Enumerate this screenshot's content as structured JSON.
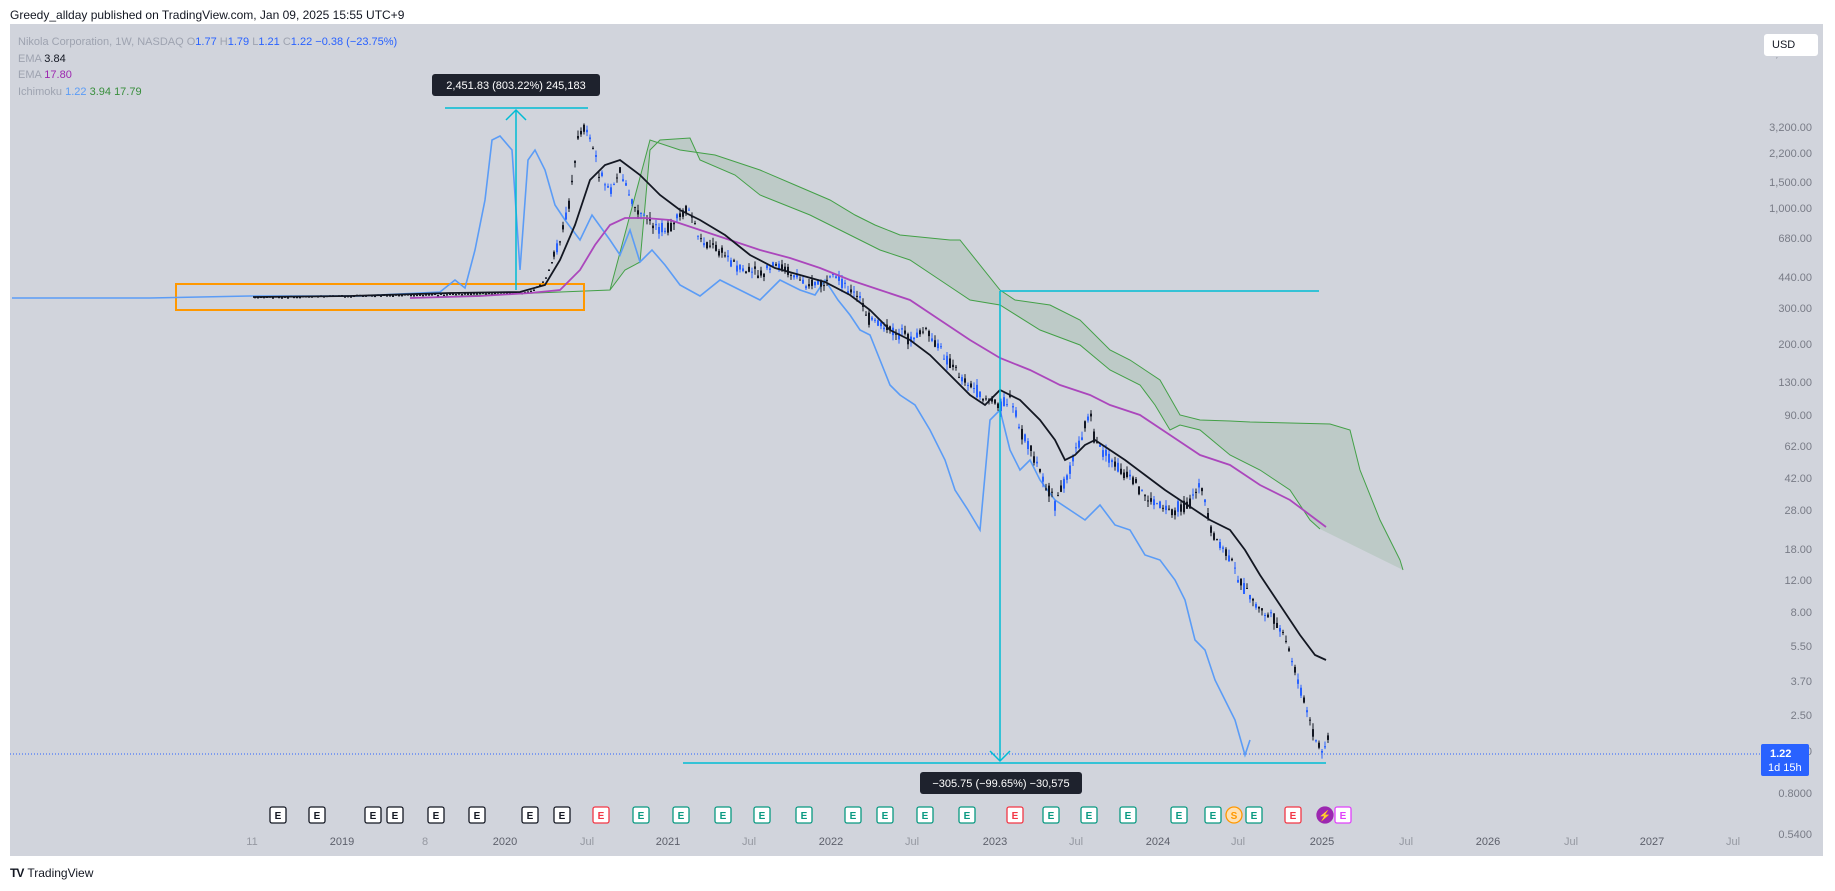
{
  "header": {
    "publisher": "Greedy_allday published on TradingView.com, Jan 09, 2025 15:55 UTC+9"
  },
  "legend": {
    "symbol": "Nikola Corporation, 1W, NASDAQ",
    "o_label": "O",
    "o_val": "1.77",
    "h_label": "H",
    "h_val": "1.79",
    "l_label": "L",
    "l_val": "1.21",
    "c_label": "C",
    "c_val": "1.22",
    "change": "−0.38 (−23.75%)",
    "ema1_label": "EMA",
    "ema1_val": "3.84",
    "ema2_label": "EMA",
    "ema2_val": "17.80",
    "ichi_label": "Ichimoku",
    "ichi_v1": "1.22",
    "ichi_v2": "3.94",
    "ichi_v3": "17.79"
  },
  "currency_button": "USD",
  "footer": {
    "logo_mark": "TV",
    "brand": "TradingView"
  },
  "colors": {
    "candle": "#2962ff",
    "ema_fast": "#131722",
    "ema_slow": "#ab47bc",
    "lagging": "#5b9cf6",
    "cloud": "#388e3c",
    "measure": "#00bcd4",
    "box": "#ff9800"
  },
  "chart_data": {
    "type": "candlestick",
    "title": "",
    "scale": "log",
    "y_ticks": [
      "4,600.00",
      "3,200.00",
      "2,200.00",
      "1,500.00",
      "1,000.00",
      "680.00",
      "440.00",
      "300.00",
      "200.00",
      "130.00",
      "90.00",
      "62.00",
      "42.00",
      "28.00",
      "18.00",
      "12.00",
      "8.00",
      "5.50",
      "3.70",
      "2.50",
      "1.70",
      "1.22",
      "0.8000",
      "0.5400"
    ],
    "x_ticks": [
      "11",
      "2019",
      "8",
      "2020",
      "Jul",
      "2021",
      "Jul",
      "2022",
      "Jul",
      "2023",
      "Jul",
      "2024",
      "Jul",
      "2025",
      "Jul",
      "2026",
      "Jul",
      "2027",
      "Jul"
    ],
    "last_price": "1.22",
    "countdown": "1d 15h",
    "measure_up": {
      "label": "2,451.83 (803.22%) 245,183",
      "from": 300,
      "to": 2800
    },
    "measure_down": {
      "label": "−305.75 (−99.65%) −30,575",
      "from": 300,
      "to": 1.22
    },
    "events": [
      "E",
      "E",
      "E",
      "E",
      "E",
      "E",
      "E",
      "E",
      "E",
      "E",
      "E",
      "E",
      "E",
      "E",
      "E",
      "E",
      "E",
      "E",
      "E",
      "E",
      "E",
      "E",
      "E",
      "E",
      "S",
      "E",
      "E",
      "⚡",
      "E"
    ],
    "series": [
      {
        "name": "EMA",
        "last": 3.84
      },
      {
        "name": "EMA",
        "last": 17.8
      },
      {
        "name": "Ichimoku",
        "last": 1.22
      }
    ]
  }
}
